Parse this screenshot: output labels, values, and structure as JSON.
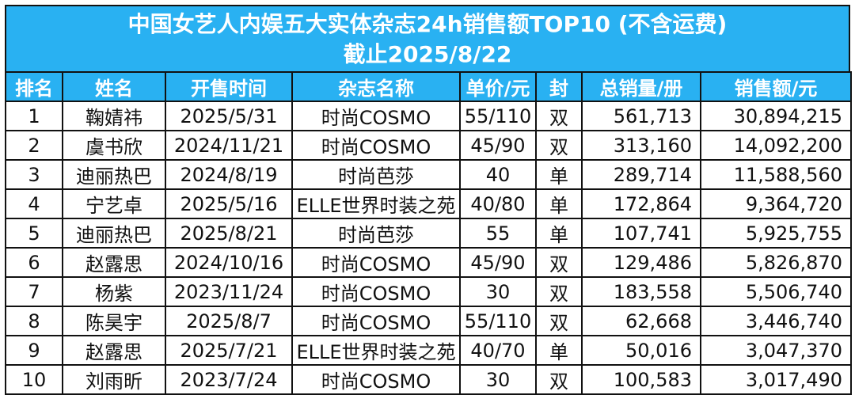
{
  "title": "中国女艺人内娱五大实体杂志24h销售额TOP10 (不含运费)",
  "subtitle": "截止2025/8/22",
  "columns": [
    "排名",
    "姓名",
    "开售时间",
    "杂志名称",
    "单价/元",
    "封",
    "总销量/册",
    "销售额/元"
  ],
  "rows": [
    {
      "rank": "1",
      "name": "鞠婧祎",
      "date": "2025/5/31",
      "magazine": "时尚COSMO",
      "price": "55/110",
      "cover": "双",
      "volume": "561,713",
      "sales": "30,894,215"
    },
    {
      "rank": "2",
      "name": "虞书欣",
      "date": "2024/11/21",
      "magazine": "时尚COSMO",
      "price": "45/90",
      "cover": "双",
      "volume": "313,160",
      "sales": "14,092,200"
    },
    {
      "rank": "3",
      "name": "迪丽热巴",
      "date": "2024/8/19",
      "magazine": "时尚芭莎",
      "price": "40",
      "cover": "单",
      "volume": "289,714",
      "sales": "11,588,560"
    },
    {
      "rank": "4",
      "name": "宁艺卓",
      "date": "2025/5/16",
      "magazine": "ELLE世界时装之苑",
      "price": "40/80",
      "cover": "单",
      "volume": "172,864",
      "sales": "9,364,720"
    },
    {
      "rank": "5",
      "name": "迪丽热巴",
      "date": "2025/8/21",
      "magazine": "时尚芭莎",
      "price": "55",
      "cover": "单",
      "volume": "107,741",
      "sales": "5,925,755"
    },
    {
      "rank": "6",
      "name": "赵露思",
      "date": "2024/10/16",
      "magazine": "时尚COSMO",
      "price": "45/90",
      "cover": "双",
      "volume": "129,486",
      "sales": "5,826,870"
    },
    {
      "rank": "7",
      "name": "杨紫",
      "date": "2023/11/24",
      "magazine": "时尚COSMO",
      "price": "30",
      "cover": "双",
      "volume": "183,558",
      "sales": "5,506,740"
    },
    {
      "rank": "8",
      "name": "陈昊宇",
      "date": "2025/8/7",
      "magazine": "时尚COSMO",
      "price": "55/110",
      "cover": "双",
      "volume": "62,668",
      "sales": "3,446,740"
    },
    {
      "rank": "9",
      "name": "赵露思",
      "date": "2025/7/21",
      "magazine": "ELLE世界时装之苑",
      "price": "40/70",
      "cover": "单",
      "volume": "50,016",
      "sales": "3,047,370"
    },
    {
      "rank": "10",
      "name": "刘雨昕",
      "date": "2023/7/24",
      "magazine": "时尚COSMO",
      "price": "30",
      "cover": "双",
      "volume": "100,583",
      "sales": "3,017,490"
    }
  ],
  "colors": {
    "header_bg": "#29b1f2",
    "header_text": "#ffffff",
    "border": "#111111"
  }
}
